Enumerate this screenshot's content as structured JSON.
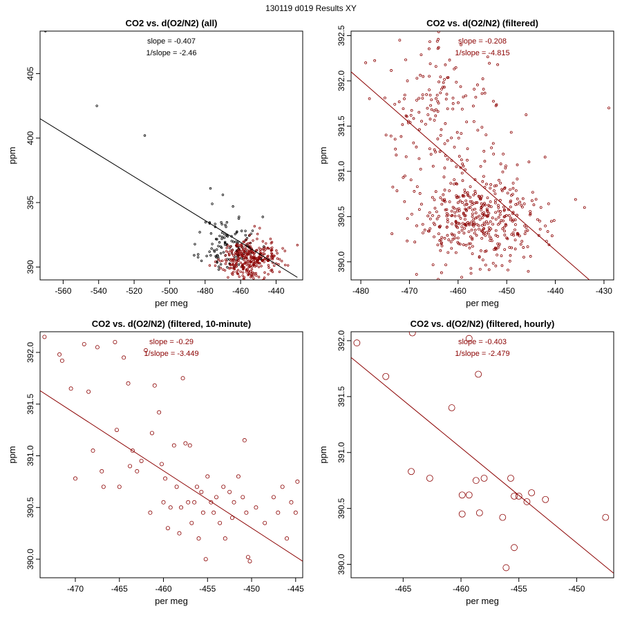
{
  "figure": {
    "title": "130119   d019   Results XY"
  },
  "chart_data": [
    {
      "type": "scatter",
      "title": "CO2 vs. d(O2/N2) (all)",
      "xlabel": "per meg",
      "ylabel": "ppm",
      "xlim": [
        -573,
        -425
      ],
      "ylim": [
        389,
        408.3
      ],
      "xticks": [
        -560,
        -540,
        -520,
        -500,
        -480,
        -460,
        -440
      ],
      "yticks": [
        390,
        395,
        400,
        405
      ],
      "slope_label": "slope = -0.407",
      "inv_slope_label": "1/slope = -2.46",
      "stats_color": "#000000",
      "marker_radius": 1.3,
      "fit_line": {
        "color": "#000000",
        "x": [
          -573,
          -428
        ],
        "y": [
          401.5,
          389.2
        ]
      },
      "series": [
        {
          "color": "#000000",
          "cluster": {
            "n": 120,
            "cx": -466,
            "cy": 391.7,
            "sx": 8,
            "sy": 1.1,
            "seed": 11
          },
          "points": [
            [
              -570,
              408.3
            ],
            [
              -541,
              402.5
            ],
            [
              -514,
              400.2
            ],
            [
              -477,
              396.1
            ],
            [
              -470,
              395.6
            ],
            [
              -476,
              394.9
            ],
            [
              -483,
              392.7
            ]
          ]
        },
        {
          "color": "#8b0000",
          "cluster": {
            "n": 320,
            "cx": -456,
            "cy": 390.6,
            "sx": 8,
            "sy": 0.75,
            "seed": 29
          },
          "points": [
            [
              -428,
              391.7
            ],
            [
              -438,
              390.6
            ]
          ]
        }
      ]
    },
    {
      "type": "scatter",
      "title": "CO2 vs. d(O2/N2) (filtered)",
      "xlabel": "per meg",
      "ylabel": "ppm",
      "xlim": [
        -482,
        -428
      ],
      "ylim": [
        389.8,
        392.55
      ],
      "xticks": [
        -480,
        -470,
        -460,
        -450,
        -440,
        -430
      ],
      "yticks": [
        390.0,
        390.5,
        391.0,
        391.5,
        392.0,
        392.5
      ],
      "slope_label": "slope = -0.208",
      "inv_slope_label": "1/slope = -4.815",
      "stats_color": "#8b0000",
      "marker_radius": 1.5,
      "fit_line": {
        "color": "#8b0000",
        "x": [
          -482,
          -433
        ],
        "y": [
          392.1,
          389.8
        ]
      },
      "series": [
        {
          "color": "#8b0000",
          "cluster": {
            "n": 160,
            "cx": -463,
            "cy": 391.65,
            "sx": 6.5,
            "sy": 0.4,
            "seed": 41
          },
          "points": [
            [
              -429,
              391.7
            ],
            [
              -434,
              390.6
            ],
            [
              -479,
              392.2
            ],
            [
              -472,
              392.45
            ]
          ]
        },
        {
          "color": "#8b0000",
          "cluster": {
            "n": 430,
            "cx": -455,
            "cy": 390.45,
            "sx": 7,
            "sy": 0.27,
            "seed": 53
          },
          "points": []
        }
      ]
    },
    {
      "type": "scatter",
      "title": "CO2 vs. d(O2/N2) (filtered, 10-minute)",
      "xlabel": "per meg",
      "ylabel": "ppm",
      "xlim": [
        -474,
        -444.2
      ],
      "ylim": [
        389.82,
        392.2
      ],
      "xticks": [
        -470,
        -465,
        -460,
        -455,
        -450,
        -445
      ],
      "yticks": [
        390.0,
        390.5,
        391.0,
        391.5,
        392.0
      ],
      "slope_label": "slope = -0.29",
      "inv_slope_label": "1/slope = -3.449",
      "stats_color": "#8b0000",
      "marker_radius": 2.6,
      "fit_line": {
        "color": "#8b0000",
        "x": [
          -474,
          -444.2
        ],
        "y": [
          391.63,
          389.98
        ]
      },
      "series": [
        {
          "color": "#8b0000",
          "cluster": null,
          "points": [
            [
              -473.5,
              392.15
            ],
            [
              -471.8,
              391.98
            ],
            [
              -471.5,
              391.92
            ],
            [
              -470.5,
              391.65
            ],
            [
              -470,
              390.78
            ],
            [
              -469,
              392.08
            ],
            [
              -468.5,
              391.62
            ],
            [
              -468,
              391.05
            ],
            [
              -467.5,
              392.05
            ],
            [
              -467,
              390.85
            ],
            [
              -466.8,
              390.7
            ],
            [
              -465.5,
              392.1
            ],
            [
              -465.3,
              391.25
            ],
            [
              -465,
              390.7
            ],
            [
              -464.5,
              391.95
            ],
            [
              -464,
              391.7
            ],
            [
              -463.8,
              390.9
            ],
            [
              -463.5,
              391.05
            ],
            [
              -463,
              390.85
            ],
            [
              -462.5,
              390.95
            ],
            [
              -462,
              392.02
            ],
            [
              -461.5,
              390.45
            ],
            [
              -461.3,
              391.22
            ],
            [
              -461,
              391.68
            ],
            [
              -460.5,
              391.42
            ],
            [
              -460.2,
              390.92
            ],
            [
              -460,
              390.55
            ],
            [
              -459.8,
              390.78
            ],
            [
              -459.5,
              390.3
            ],
            [
              -459.2,
              390.5
            ],
            [
              -458.8,
              391.1
            ],
            [
              -458.5,
              390.7
            ],
            [
              -458.2,
              390.25
            ],
            [
              -458,
              390.5
            ],
            [
              -457.8,
              391.75
            ],
            [
              -457.5,
              391.12
            ],
            [
              -457.2,
              390.55
            ],
            [
              -457,
              391.1
            ],
            [
              -456.8,
              390.35
            ],
            [
              -456.5,
              390.55
            ],
            [
              -456.2,
              390.7
            ],
            [
              -456,
              390.2
            ],
            [
              -455.7,
              390.65
            ],
            [
              -455.5,
              390.45
            ],
            [
              -455.2,
              390.0
            ],
            [
              -455,
              390.8
            ],
            [
              -454.6,
              390.55
            ],
            [
              -454.3,
              390.45
            ],
            [
              -454,
              390.6
            ],
            [
              -453.6,
              390.35
            ],
            [
              -453.2,
              390.7
            ],
            [
              -453,
              390.2
            ],
            [
              -452.5,
              390.65
            ],
            [
              -452.2,
              390.4
            ],
            [
              -452,
              390.55
            ],
            [
              -451.5,
              390.8
            ],
            [
              -451,
              390.6
            ],
            [
              -450.6,
              390.45
            ],
            [
              -450.4,
              390.02
            ],
            [
              -450.2,
              389.98
            ],
            [
              -449.5,
              390.5
            ],
            [
              -448.5,
              390.35
            ],
            [
              -447,
              390.45
            ],
            [
              -446.5,
              390.7
            ],
            [
              -446,
              390.2
            ],
            [
              -445.5,
              390.55
            ],
            [
              -445,
              390.45
            ],
            [
              -444.8,
              390.75
            ],
            [
              -450.8,
              391.15
            ],
            [
              -447.5,
              390.6
            ]
          ]
        }
      ]
    },
    {
      "type": "scatter",
      "title": "CO2 vs. d(O2/N2) (filtered, hourly)",
      "xlabel": "per meg",
      "ylabel": "ppm",
      "xlim": [
        -469.5,
        -446.8
      ],
      "ylim": [
        389.88,
        392.08
      ],
      "xticks": [
        -465,
        -460,
        -455,
        -450
      ],
      "yticks": [
        390.0,
        390.5,
        391.0,
        391.5,
        392.0
      ],
      "slope_label": "slope = -0.403",
      "inv_slope_label": "1/slope = -2.479",
      "stats_color": "#8b0000",
      "marker_radius": 4.5,
      "fit_line": {
        "color": "#8b0000",
        "x": [
          -469.5,
          -446.8
        ],
        "y": [
          391.85,
          389.92
        ]
      },
      "series": [
        {
          "color": "#8b0000",
          "cluster": null,
          "points": [
            [
              -469,
              391.98
            ],
            [
              -466.5,
              391.68
            ],
            [
              -464.2,
              392.07
            ],
            [
              -459.3,
              392.02
            ],
            [
              -464.3,
              390.83
            ],
            [
              -462.7,
              390.77
            ],
            [
              -460.8,
              391.4
            ],
            [
              -459.9,
              390.62
            ],
            [
              -459.3,
              390.62
            ],
            [
              -458.7,
              390.75
            ],
            [
              -458.4,
              390.46
            ],
            [
              -458,
              390.77
            ],
            [
              -455.7,
              390.77
            ],
            [
              -455.4,
              390.61
            ],
            [
              -458.5,
              391.7
            ],
            [
              -459.9,
              390.45
            ],
            [
              -456.4,
              390.42
            ],
            [
              -455,
              390.61
            ],
            [
              -454.3,
              390.56
            ],
            [
              -453.9,
              390.64
            ],
            [
              -452.7,
              390.58
            ],
            [
              -447.5,
              390.42
            ],
            [
              -455.4,
              390.15
            ],
            [
              -456.1,
              389.97
            ]
          ]
        }
      ]
    }
  ]
}
